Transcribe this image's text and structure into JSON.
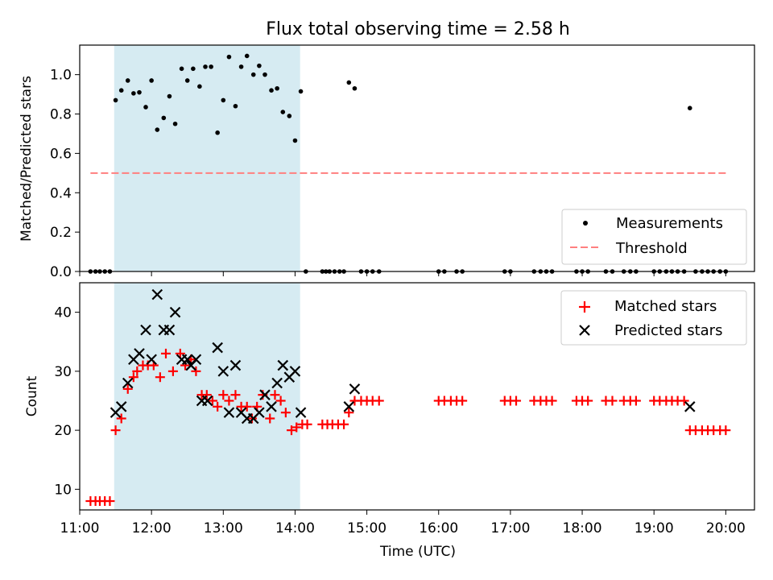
{
  "figure": {
    "title": "Flux total observing time = 2.58 h",
    "xlabel": "Time (UTC)"
  },
  "chart_data": [
    {
      "type": "scatter",
      "title": "Flux total observing time = 2.58 h",
      "ylabel": "Matched/Predicted stars",
      "xlim": [
        11.0,
        20.4
      ],
      "ylim": [
        0.0,
        1.15
      ],
      "x_ticks": [
        11,
        12,
        13,
        14,
        15,
        16,
        17,
        18,
        19,
        20
      ],
      "x_tick_labels": [],
      "y_ticks": [
        0.0,
        0.2,
        0.4,
        0.6,
        0.8,
        1.0
      ],
      "y_tick_labels": [
        "0.0",
        "0.2",
        "0.4",
        "0.6",
        "0.8",
        "1.0"
      ],
      "shaded_region": {
        "x": [
          11.48,
          14.07
        ],
        "color": "#add8e6"
      },
      "threshold": {
        "name": "Threshold",
        "y": 0.5,
        "x": [
          11.15,
          20.0
        ],
        "color": "#ff7f7f",
        "style": "dashed"
      },
      "legend_position": "lower right",
      "series": [
        {
          "name": "Measurements",
          "marker": "dot",
          "color": "#000000",
          "points": [
            [
              11.15,
              0
            ],
            [
              11.22,
              0
            ],
            [
              11.28,
              0
            ],
            [
              11.35,
              0
            ],
            [
              11.42,
              0
            ],
            [
              11.5,
              0.87
            ],
            [
              11.58,
              0.92
            ],
            [
              11.67,
              0.97
            ],
            [
              11.75,
              0.905
            ],
            [
              11.83,
              0.91
            ],
            [
              11.92,
              0.835
            ],
            [
              12.0,
              0.97
            ],
            [
              12.08,
              0.72
            ],
            [
              12.17,
              0.78
            ],
            [
              12.25,
              0.89
            ],
            [
              12.33,
              0.75
            ],
            [
              12.42,
              1.03
            ],
            [
              12.5,
              0.97
            ],
            [
              12.58,
              1.03
            ],
            [
              12.67,
              0.94
            ],
            [
              12.75,
              1.04
            ],
            [
              12.83,
              1.04
            ],
            [
              12.92,
              0.705
            ],
            [
              13.0,
              0.87
            ],
            [
              13.08,
              1.09
            ],
            [
              13.17,
              0.84
            ],
            [
              13.25,
              1.04
            ],
            [
              13.33,
              1.095
            ],
            [
              13.42,
              1.0
            ],
            [
              13.5,
              1.045
            ],
            [
              13.58,
              1.0
            ],
            [
              13.67,
              0.92
            ],
            [
              13.75,
              0.93
            ],
            [
              13.83,
              0.81
            ],
            [
              13.92,
              0.79
            ],
            [
              14.0,
              0.665
            ],
            [
              14.08,
              0.915
            ],
            [
              14.15,
              0
            ],
            [
              14.38,
              0
            ],
            [
              14.43,
              0
            ],
            [
              14.48,
              0
            ],
            [
              14.55,
              0
            ],
            [
              14.62,
              0
            ],
            [
              14.68,
              0
            ],
            [
              14.75,
              0.96
            ],
            [
              14.83,
              0.93
            ],
            [
              14.92,
              0
            ],
            [
              15.0,
              0
            ],
            [
              15.08,
              0
            ],
            [
              15.17,
              0
            ],
            [
              16.0,
              0
            ],
            [
              16.08,
              0
            ],
            [
              16.25,
              0
            ],
            [
              16.33,
              0
            ],
            [
              16.92,
              0
            ],
            [
              17.0,
              0
            ],
            [
              17.33,
              0
            ],
            [
              17.42,
              0
            ],
            [
              17.5,
              0
            ],
            [
              17.58,
              0
            ],
            [
              17.92,
              0
            ],
            [
              18.0,
              0
            ],
            [
              18.08,
              0
            ],
            [
              18.33,
              0
            ],
            [
              18.42,
              0
            ],
            [
              18.58,
              0
            ],
            [
              18.67,
              0
            ],
            [
              18.75,
              0
            ],
            [
              19.0,
              0
            ],
            [
              19.08,
              0
            ],
            [
              19.17,
              0
            ],
            [
              19.25,
              0
            ],
            [
              19.33,
              0
            ],
            [
              19.42,
              0
            ],
            [
              19.5,
              0.83
            ],
            [
              19.58,
              0
            ],
            [
              19.67,
              0
            ],
            [
              19.75,
              0
            ],
            [
              19.83,
              0
            ],
            [
              19.92,
              0
            ],
            [
              20.0,
              0
            ]
          ]
        }
      ]
    },
    {
      "type": "scatter",
      "ylabel": "Count",
      "xlabel": "Time (UTC)",
      "xlim": [
        11.0,
        20.4
      ],
      "ylim": [
        6.5,
        45
      ],
      "x_ticks": [
        11,
        12,
        13,
        14,
        15,
        16,
        17,
        18,
        19,
        20
      ],
      "x_tick_labels": [
        "11:00",
        "12:00",
        "13:00",
        "14:00",
        "15:00",
        "16:00",
        "17:00",
        "18:00",
        "19:00",
        "20:00"
      ],
      "y_ticks": [
        10,
        20,
        30,
        40
      ],
      "y_tick_labels": [
        "10",
        "20",
        "30",
        "40"
      ],
      "shaded_region": {
        "x": [
          11.48,
          14.07
        ],
        "color": "#add8e6"
      },
      "legend_position": "upper right",
      "series": [
        {
          "name": "Matched stars",
          "marker": "plus",
          "color": "#ff0000",
          "points": [
            [
              11.15,
              8
            ],
            [
              11.22,
              8
            ],
            [
              11.28,
              8
            ],
            [
              11.35,
              8
            ],
            [
              11.42,
              8
            ],
            [
              11.5,
              20
            ],
            [
              11.58,
              22
            ],
            [
              11.67,
              27
            ],
            [
              11.75,
              29
            ],
            [
              11.8,
              30
            ],
            [
              11.88,
              31
            ],
            [
              11.95,
              31
            ],
            [
              12.03,
              31
            ],
            [
              12.12,
              29
            ],
            [
              12.2,
              33
            ],
            [
              12.3,
              30
            ],
            [
              12.4,
              33
            ],
            [
              12.47,
              31
            ],
            [
              12.55,
              32
            ],
            [
              12.62,
              30
            ],
            [
              12.7,
              26
            ],
            [
              12.77,
              26
            ],
            [
              12.85,
              25
            ],
            [
              12.92,
              24
            ],
            [
              13.0,
              26
            ],
            [
              13.08,
              25
            ],
            [
              13.17,
              26
            ],
            [
              13.25,
              24
            ],
            [
              13.33,
              24
            ],
            [
              13.4,
              22
            ],
            [
              13.47,
              24
            ],
            [
              13.55,
              26
            ],
            [
              13.65,
              22
            ],
            [
              13.72,
              26
            ],
            [
              13.8,
              25
            ],
            [
              13.87,
              23
            ],
            [
              13.95,
              20
            ],
            [
              14.02,
              20.5
            ],
            [
              14.1,
              21
            ],
            [
              14.17,
              21
            ],
            [
              14.38,
              21
            ],
            [
              14.45,
              21
            ],
            [
              14.52,
              21
            ],
            [
              14.6,
              21
            ],
            [
              14.68,
              21
            ],
            [
              14.75,
              23
            ],
            [
              14.83,
              25
            ],
            [
              14.92,
              25
            ],
            [
              15.0,
              25
            ],
            [
              15.08,
              25
            ],
            [
              15.17,
              25
            ],
            [
              16.0,
              25
            ],
            [
              16.08,
              25
            ],
            [
              16.17,
              25
            ],
            [
              16.25,
              25
            ],
            [
              16.33,
              25
            ],
            [
              16.92,
              25
            ],
            [
              17.0,
              25
            ],
            [
              17.08,
              25
            ],
            [
              17.33,
              25
            ],
            [
              17.42,
              25
            ],
            [
              17.5,
              25
            ],
            [
              17.58,
              25
            ],
            [
              17.92,
              25
            ],
            [
              18.0,
              25
            ],
            [
              18.08,
              25
            ],
            [
              18.33,
              25
            ],
            [
              18.42,
              25
            ],
            [
              18.58,
              25
            ],
            [
              18.67,
              25
            ],
            [
              18.75,
              25
            ],
            [
              19.0,
              25
            ],
            [
              19.08,
              25
            ],
            [
              19.17,
              25
            ],
            [
              19.25,
              25
            ],
            [
              19.33,
              25
            ],
            [
              19.42,
              25
            ],
            [
              19.5,
              20
            ],
            [
              19.58,
              20
            ],
            [
              19.67,
              20
            ],
            [
              19.75,
              20
            ],
            [
              19.83,
              20
            ],
            [
              19.92,
              20
            ],
            [
              20.0,
              20
            ]
          ]
        },
        {
          "name": "Predicted stars",
          "marker": "x",
          "color": "#000000",
          "points": [
            [
              11.5,
              23
            ],
            [
              11.58,
              24
            ],
            [
              11.67,
              28
            ],
            [
              11.75,
              32
            ],
            [
              11.83,
              33
            ],
            [
              11.92,
              37
            ],
            [
              12.0,
              32
            ],
            [
              12.08,
              43
            ],
            [
              12.17,
              37
            ],
            [
              12.25,
              37
            ],
            [
              12.33,
              40
            ],
            [
              12.42,
              32
            ],
            [
              12.5,
              32
            ],
            [
              12.55,
              31
            ],
            [
              12.62,
              32
            ],
            [
              12.7,
              25
            ],
            [
              12.78,
              25
            ],
            [
              12.92,
              34
            ],
            [
              13.0,
              30
            ],
            [
              13.08,
              23
            ],
            [
              13.17,
              31
            ],
            [
              13.25,
              23
            ],
            [
              13.33,
              22
            ],
            [
              13.42,
              22
            ],
            [
              13.5,
              23
            ],
            [
              13.58,
              26
            ],
            [
              13.67,
              24
            ],
            [
              13.75,
              28
            ],
            [
              13.83,
              31
            ],
            [
              13.92,
              29
            ],
            [
              14.0,
              30
            ],
            [
              14.08,
              23
            ],
            [
              14.75,
              24
            ],
            [
              14.83,
              27
            ],
            [
              19.5,
              24
            ]
          ]
        }
      ]
    }
  ]
}
